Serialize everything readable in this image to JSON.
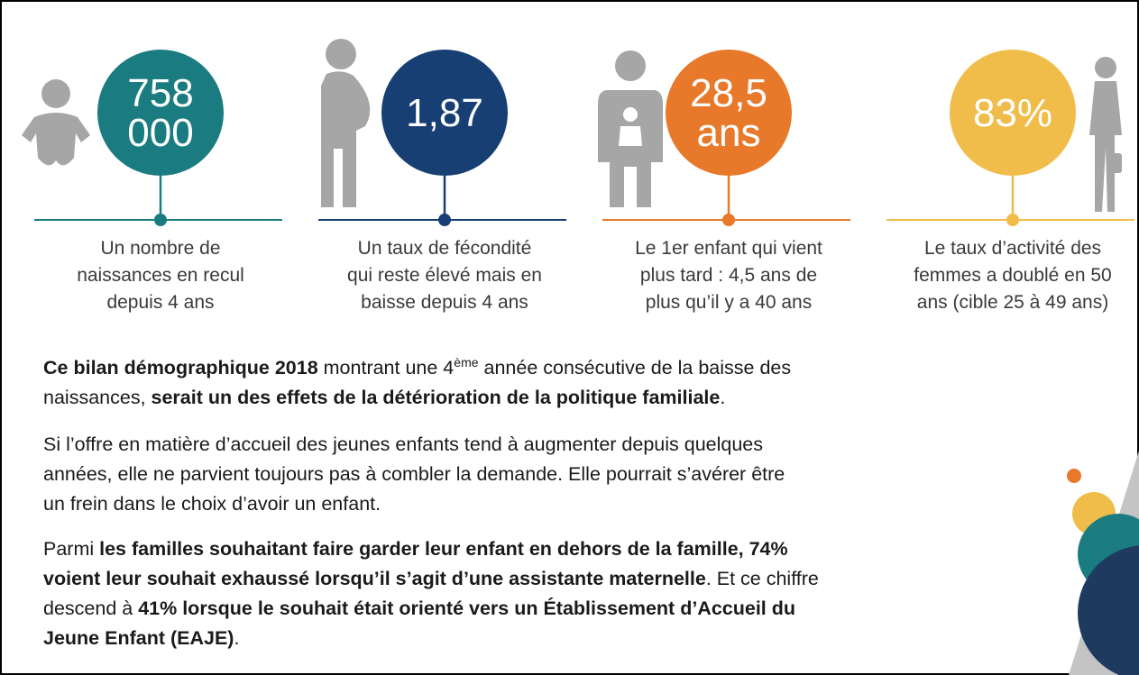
{
  "stats": [
    {
      "value": [
        "758",
        "000"
      ],
      "color": "#1a7c80",
      "caption": [
        "Un nombre de",
        "naissances en recul",
        "depuis 4 ans"
      ]
    },
    {
      "value": [
        "1,87"
      ],
      "color": "#173f73",
      "caption": [
        "Un taux de fécondité",
        "qui reste élevé mais en",
        "baisse depuis 4 ans"
      ]
    },
    {
      "value": [
        "28,5",
        "ans"
      ],
      "color": "#e8792a",
      "caption": [
        "Le 1er enfant qui vient",
        "plus tard : 4,5 ans de",
        "plus qu’il y a 40 ans"
      ]
    },
    {
      "value": [
        "83%"
      ],
      "color": "#f1bd4a",
      "caption": [
        "Le taux d’activité des",
        "femmes a doublé en 50",
        "ans (cible 25 à 49 ans)"
      ]
    }
  ],
  "paragraphs": [
    [
      [
        {
          "text": "Ce bilan démographique 2018",
          "bold": true
        },
        {
          "text": " montrant une 4"
        },
        {
          "text": "ème",
          "sup": true
        },
        {
          "text": " année consécutive de la baisse des"
        }
      ],
      [
        {
          "text": "naissances, "
        },
        {
          "text": "serait un des effets de la détérioration de la politique familiale",
          "bold": true
        },
        {
          "text": "."
        }
      ]
    ],
    [
      [
        {
          "text": "Si l’offre en matière d’accueil des jeunes enfants tend à augmenter depuis quelques"
        }
      ],
      [
        {
          "text": "années, elle ne parvient toujours pas à combler la demande. Elle pourrait s’avérer être"
        }
      ],
      [
        {
          "text": "un frein dans le choix d’avoir un enfant."
        }
      ]
    ],
    [
      [
        {
          "text": "Parmi "
        },
        {
          "text": "les familles souhaitant faire garder leur enfant en dehors de la famille, 74%",
          "bold": true
        }
      ],
      [
        {
          "text": "voient leur souhait exhaussé lorsqu’il s’agit d’une assistante maternelle",
          "bold": true
        },
        {
          "text": ". Et ce chiffre"
        }
      ],
      [
        {
          "text": "descend à "
        },
        {
          "text": "41% lorsque le souhait était orienté vers un Établissement d’Accueil du",
          "bold": true
        }
      ],
      [
        {
          "text": "Jeune Enfant (EAJE)",
          "bold": true
        },
        {
          "text": "."
        }
      ]
    ]
  ]
}
